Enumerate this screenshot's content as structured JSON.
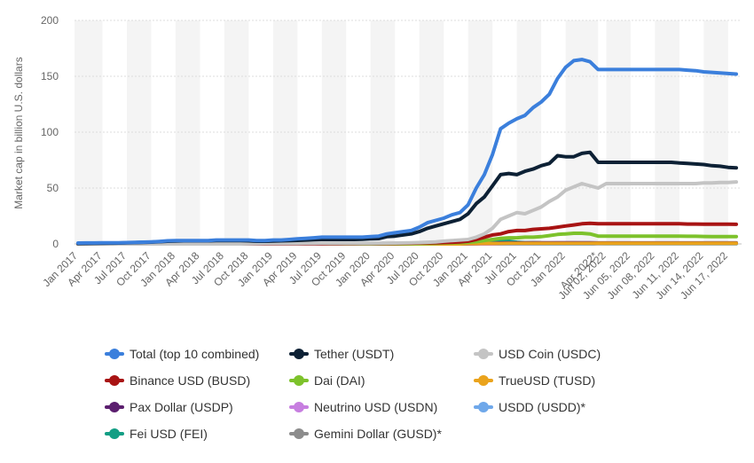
{
  "chart_data": {
    "type": "line",
    "title": "",
    "ylabel": "Market cap in billion U.S. dollars",
    "xlabel": "",
    "ylim": [
      0,
      200
    ],
    "yticks": [
      0,
      50,
      100,
      150,
      200
    ],
    "grid": true,
    "legend_position": "bottom",
    "x": [
      "Jan 2017",
      "Feb 2017",
      "Mar 2017",
      "Apr 2017",
      "May 2017",
      "Jun 2017",
      "Jul 2017",
      "Aug 2017",
      "Sep 2017",
      "Oct 2017",
      "Nov 2017",
      "Dec 2017",
      "Jan 2018",
      "Feb 2018",
      "Mar 2018",
      "Apr 2018",
      "May 2018",
      "Jun 2018",
      "Jul 2018",
      "Aug 2018",
      "Sep 2018",
      "Oct 2018",
      "Nov 2018",
      "Dec 2018",
      "Jan 2019",
      "Feb 2019",
      "Mar 2019",
      "Apr 2019",
      "May 2019",
      "Jun 2019",
      "Jul 2019",
      "Aug 2019",
      "Sep 2019",
      "Oct 2019",
      "Nov 2019",
      "Dec 2019",
      "Jan 2020",
      "Feb 2020",
      "Mar 2020",
      "Apr 2020",
      "May 2020",
      "Jun 2020",
      "Jul 2020",
      "Aug 2020",
      "Sep 2020",
      "Oct 2020",
      "Nov 2020",
      "Dec 2020",
      "Jan 2021",
      "Feb 2021",
      "Mar 2021",
      "Apr 2021",
      "May 2021",
      "Jun 2021",
      "Jul 2021",
      "Aug 2021",
      "Sep 2021",
      "Oct 2021",
      "Nov 2021",
      "Dec 2021",
      "Jan 2022",
      "Feb 2022",
      "Mar 2022",
      "Apr 2022",
      "Apr 2022*",
      "Jun 02, 2022",
      "Jun 03, 2022",
      "Jun 04, 2022",
      "Jun 05, 2022",
      "Jun 06, 2022",
      "Jun 07, 2022",
      "Jun 08, 2022",
      "Jun 09, 2022",
      "Jun 10, 2022",
      "Jun 11, 2022",
      "Jun 12, 2022",
      "Jun 13, 2022",
      "Jun 14, 2022",
      "Jun 15, 2022",
      "Jun 16, 2022",
      "Jun 17, 2022",
      "Jun 18, 2022"
    ],
    "tick_labels": [
      "Jan 2017",
      "Apr 2017",
      "Jul 2017",
      "Oct 2017",
      "Jan 2018",
      "Apr 2018",
      "Jul 2018",
      "Oct 2018",
      "Jan 2019",
      "Apr 2019",
      "Jul 2019",
      "Oct 2019",
      "Jan 2020",
      "Apr 2020",
      "Jul 2020",
      "Oct 2020",
      "Jan 2021",
      "Apr 2021",
      "Jul 2021",
      "Oct 2021",
      "Jan 2022",
      "Apr 2022*",
      "Jun 02, 2022",
      "Jun 05, 2022",
      "Jun 08, 2022",
      "Jun 11, 2022",
      "Jun 14, 2022",
      "Jun 17, 2022"
    ],
    "series": [
      {
        "name": "Total (top 10 combined)",
        "color": "#3b7fdc",
        "values": [
          0.8,
          0.9,
          0.9,
          1,
          1,
          1,
          1.2,
          1.4,
          1.6,
          1.8,
          2.2,
          2.8,
          3,
          3,
          3,
          3,
          3,
          3.5,
          3.5,
          3.5,
          3.5,
          3.5,
          3,
          3,
          3.5,
          3.5,
          4,
          4.5,
          5,
          5.5,
          6,
          6,
          6,
          6,
          6,
          6,
          6.5,
          7,
          9,
          10,
          11,
          12,
          15,
          19,
          21,
          23,
          26,
          28,
          35,
          50,
          62,
          80,
          103,
          108,
          112,
          115,
          122,
          127,
          134,
          148,
          158,
          164,
          165,
          163,
          156,
          156,
          156,
          156,
          156,
          156,
          156,
          156,
          156,
          156,
          156,
          155.5,
          155,
          154,
          153.5,
          153,
          152.5,
          152
        ]
      },
      {
        "name": "Tether (USDT)",
        "color": "#0d2135",
        "values": [
          0.3,
          0.4,
          0.5,
          0.6,
          0.7,
          0.8,
          1,
          1.2,
          1.4,
          1.6,
          2,
          2.4,
          2.6,
          2.8,
          2.8,
          2.8,
          2.8,
          3,
          3,
          3,
          3,
          2.8,
          2.4,
          2.4,
          2.6,
          2.8,
          3,
          3.2,
          3.5,
          3.8,
          4,
          4,
          4,
          4,
          4,
          4.2,
          4.5,
          4.8,
          6.5,
          7,
          8,
          9,
          11,
          14,
          16,
          18,
          20,
          22,
          27,
          36,
          42,
          52,
          62,
          63,
          62,
          65,
          67,
          70,
          72,
          79,
          78,
          78,
          81,
          82,
          73,
          73,
          73,
          73,
          73,
          73,
          73,
          73,
          73,
          73,
          72.5,
          72,
          71.5,
          71,
          70,
          69.5,
          68.5,
          68
        ]
      },
      {
        "name": "USD Coin (USDC)",
        "color": "#c4c4c4",
        "values": [
          0,
          0,
          0,
          0,
          0,
          0,
          0,
          0,
          0,
          0,
          0,
          0,
          0,
          0,
          0,
          0,
          0,
          0,
          0,
          0,
          0,
          0.1,
          0.2,
          0.3,
          0.3,
          0.3,
          0.3,
          0.3,
          0.4,
          0.4,
          0.5,
          0.5,
          0.5,
          0.5,
          0.5,
          0.5,
          0.5,
          0.6,
          0.7,
          0.8,
          0.9,
          1,
          1.2,
          1.5,
          1.8,
          2.5,
          3,
          3.5,
          4,
          6,
          9,
          14,
          22,
          25,
          28,
          27,
          30,
          33,
          38,
          42,
          48,
          51,
          54,
          52,
          50,
          54,
          54,
          54,
          54,
          54,
          54,
          54,
          54,
          54,
          54,
          54,
          54,
          54.5,
          54.5,
          55,
          55,
          55.5
        ]
      },
      {
        "name": "Binance USD (BUSD)",
        "color": "#a81313",
        "values": [
          0,
          0,
          0,
          0,
          0,
          0,
          0,
          0,
          0,
          0,
          0,
          0,
          0,
          0,
          0,
          0,
          0,
          0,
          0,
          0,
          0,
          0,
          0,
          0,
          0,
          0,
          0,
          0,
          0,
          0,
          0,
          0.1,
          0.1,
          0.2,
          0.2,
          0.3,
          0.3,
          0.3,
          0.4,
          0.5,
          0.6,
          0.7,
          0.9,
          1,
          1.1,
          1.3,
          1.5,
          1.8,
          2.5,
          4,
          6,
          8,
          9,
          11,
          12,
          12,
          13,
          13.5,
          14,
          15,
          16,
          17,
          18,
          18.5,
          18,
          18,
          18,
          18,
          18,
          18,
          18,
          18,
          18,
          18,
          18,
          17.8,
          17.8,
          17.7,
          17.7,
          17.6,
          17.6,
          17.5
        ]
      },
      {
        "name": "Dai (DAI)",
        "color": "#7dc22b",
        "values": [
          0,
          0,
          0,
          0,
          0,
          0,
          0,
          0,
          0,
          0,
          0,
          0,
          0,
          0,
          0,
          0,
          0,
          0,
          0,
          0,
          0,
          0,
          0,
          0,
          0,
          0,
          0,
          0,
          0,
          0,
          0,
          0,
          0,
          0,
          0,
          0,
          0,
          0,
          0.1,
          0.1,
          0.1,
          0.2,
          0.3,
          0.4,
          0.5,
          0.9,
          1,
          1.2,
          1.5,
          2,
          3,
          4,
          5,
          5.5,
          5.5,
          6,
          6,
          6.5,
          7.5,
          8.5,
          9,
          9.5,
          9.5,
          9,
          7,
          7,
          7,
          7,
          7,
          7,
          7,
          7,
          7,
          7,
          7,
          6.8,
          6.8,
          6.7,
          6.6,
          6.6,
          6.5,
          6.5
        ]
      },
      {
        "name": "TrueUSD (TUSD)",
        "color": "#eaa31c",
        "values": [
          0,
          0,
          0,
          0,
          0,
          0,
          0,
          0,
          0,
          0,
          0,
          0,
          0,
          0,
          0,
          0,
          0,
          0,
          0,
          0,
          0,
          0,
          0,
          0,
          0,
          0,
          0,
          0,
          0,
          0,
          0,
          0,
          0,
          0,
          0,
          0,
          0,
          0,
          0,
          0,
          0,
          0,
          0,
          0,
          0,
          0,
          0,
          0,
          0.3,
          0.3,
          0.4,
          0.4,
          0.4,
          0.5,
          0.5,
          0.5,
          0.5,
          0.5,
          0.5,
          0.5,
          0.5,
          0.5,
          0.5,
          0.5,
          0.6,
          0.6,
          0.6,
          0.6,
          0.6,
          0.6,
          0.6,
          0.6,
          0.6,
          0.6,
          0.6,
          0.6,
          0.6,
          0.6,
          0.6,
          0.6,
          0.6,
          0.6
        ]
      },
      {
        "name": "Pax Dollar (USDP)",
        "color": "#5b1e6e",
        "values": [
          0,
          0,
          0,
          0,
          0,
          0,
          0,
          0,
          0,
          0,
          0,
          0,
          0,
          0,
          0,
          0,
          0,
          0,
          0,
          0,
          0,
          0,
          0,
          0,
          0,
          0,
          0,
          0,
          0,
          0,
          0,
          0,
          0,
          0,
          0,
          0,
          0,
          0,
          0,
          0,
          0,
          0,
          0,
          0,
          0,
          0,
          0,
          0,
          0.2,
          0.3,
          0.5,
          0.5,
          0.8,
          0.9,
          0.9,
          0.9,
          1,
          1,
          1,
          1,
          1,
          1,
          1,
          1,
          0.9,
          0.9,
          0.9,
          0.9,
          0.9,
          0.9,
          0.9,
          0.9,
          0.9,
          0.9,
          0.9,
          0.9,
          0.9,
          0.9,
          0.9,
          0.9,
          0.9,
          0.9
        ]
      },
      {
        "name": "Neutrino USD (USDN)",
        "color": "#c77ee0",
        "values": [
          0,
          0,
          0,
          0,
          0,
          0,
          0,
          0,
          0,
          0,
          0,
          0,
          0,
          0,
          0,
          0,
          0,
          0,
          0,
          0,
          0,
          0,
          0,
          0,
          0,
          0,
          0,
          0,
          0,
          0,
          0,
          0,
          0,
          0,
          0,
          0,
          0,
          0,
          0,
          0,
          0,
          0,
          0,
          0,
          0,
          0,
          0,
          0,
          0,
          0,
          0,
          0,
          0.3,
          0.4,
          0.4,
          0.5,
          0.6,
          0.7,
          0.8,
          0.9,
          0.9,
          0.9,
          0.8,
          0.8,
          0.7,
          0.7,
          0.7,
          0.7,
          0.7,
          0.7,
          0.7,
          0.7,
          0.7,
          0.7,
          0.7,
          0.7,
          0.7,
          0.7,
          0.7,
          0.7,
          0.7,
          0.7
        ]
      },
      {
        "name": "USDD (USDD)*",
        "color": "#6fa8ea",
        "values": [
          0,
          0,
          0,
          0,
          0,
          0,
          0,
          0,
          0,
          0,
          0,
          0,
          0,
          0,
          0,
          0,
          0,
          0,
          0,
          0,
          0,
          0,
          0,
          0,
          0,
          0,
          0,
          0,
          0,
          0,
          0,
          0,
          0,
          0,
          0,
          0,
          0,
          0,
          0,
          0,
          0,
          0,
          0,
          0,
          0,
          0,
          0,
          0,
          0,
          0,
          0,
          0,
          0,
          0,
          0,
          0,
          0,
          0,
          0,
          0,
          0,
          0,
          0,
          0,
          0.5,
          0.7,
          0.7,
          0.7,
          0.7,
          0.7,
          0.7,
          0.7,
          0.7,
          0.7,
          0.7,
          0.7,
          0.7,
          0.7,
          0.7,
          0.7,
          0.7,
          0.7
        ]
      },
      {
        "name": "Fei USD (FEI)",
        "color": "#129e84",
        "values": [
          0,
          0,
          0,
          0,
          0,
          0,
          0,
          0,
          0,
          0,
          0,
          0,
          0,
          0,
          0,
          0,
          0,
          0,
          0,
          0,
          0,
          0,
          0,
          0,
          0,
          0,
          0,
          0,
          0,
          0,
          0,
          0,
          0,
          0,
          0,
          0,
          0,
          0,
          0,
          0,
          0,
          0,
          0,
          0,
          0,
          0,
          0,
          0,
          0,
          0,
          0.5,
          1.5,
          2.5,
          2.5,
          1.5,
          1,
          1,
          0.8,
          0.8,
          0.7,
          0.6,
          0.5,
          0.5,
          0.5,
          0.4,
          0.4,
          0.4,
          0.4,
          0.4,
          0.4,
          0.4,
          0.4,
          0.4,
          0.4,
          0.4,
          0.4,
          0.4,
          0.4,
          0.4,
          0.4,
          0.4,
          0.4
        ]
      },
      {
        "name": "Gemini Dollar (GUSD)*",
        "color": "#8c8c8c",
        "values": [
          0,
          0,
          0,
          0,
          0,
          0,
          0,
          0,
          0,
          0,
          0,
          0,
          0,
          0,
          0,
          0,
          0,
          0,
          0,
          0,
          0,
          0,
          0,
          0,
          0,
          0,
          0,
          0,
          0,
          0,
          0,
          0,
          0,
          0,
          0,
          0,
          0,
          0,
          0,
          0,
          0,
          0,
          0,
          0,
          0,
          0,
          0,
          0,
          0,
          0,
          0,
          0,
          0,
          0,
          0,
          0,
          0,
          0,
          0,
          0,
          0,
          0,
          0,
          0,
          0.2,
          0.2,
          0.2,
          0.2,
          0.2,
          0.2,
          0.2,
          0.2,
          0.2,
          0.2,
          0.2,
          0.2,
          0.2,
          0.2,
          0.2,
          0.2,
          0.2,
          0.2
        ]
      }
    ]
  }
}
